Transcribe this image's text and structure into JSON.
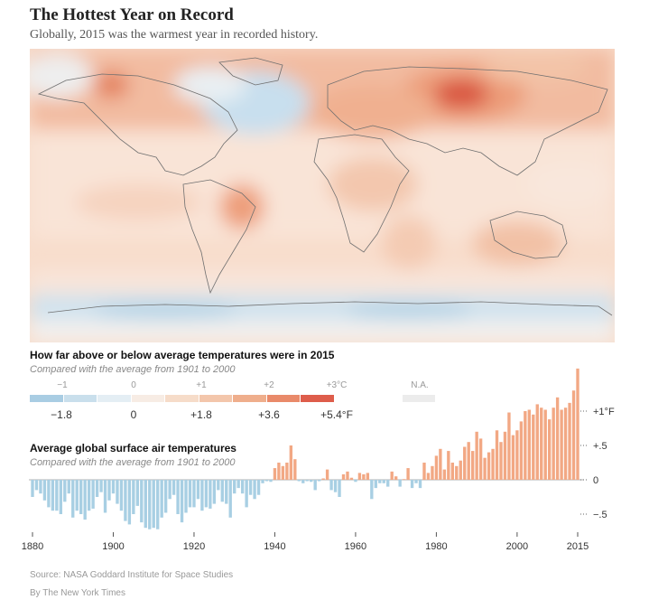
{
  "title": "The Hottest Year on Record",
  "subtitle": "Globally, 2015 was the warmest year in recorded history.",
  "map": {
    "description_free": true,
    "colors": {
      "cold2": "#a9cde3",
      "cold1": "#d6e7f1",
      "neutral": "#f6efe8",
      "warm1": "#f7d7c3",
      "warm2": "#f2b594",
      "warm3": "#eb9870",
      "hot": "#d9533f",
      "land_line": "#7a7a7a"
    }
  },
  "legend": {
    "title": "How far above or below average temperatures were in 2015",
    "subtitle": "Compared with the average from 1901 to 2000",
    "celsius": [
      "−1",
      "0",
      "+1",
      "+2",
      "+3°C"
    ],
    "fahrenheit": [
      "−1.8",
      "0",
      "+1.8",
      "+3.6",
      "+5.4°F"
    ],
    "na_label": "N.A.",
    "swatches": [
      "#a9cde3",
      "#c9dfec",
      "#e4eef4",
      "#f7ece4",
      "#f6dcc9",
      "#f3c6ab",
      "#efae8c",
      "#e98a6a",
      "#de5d4b"
    ],
    "na_color": "#ececec"
  },
  "chart_section": {
    "title": "Average global surface air temperatures",
    "subtitle": "Compared with the average from 1901 to 2000"
  },
  "chart_data": {
    "type": "bar",
    "title": "Average global surface air temperatures",
    "subtitle": "Compared with the average from 1901 to 2000",
    "unit": "°F",
    "x": [
      1880,
      1881,
      1882,
      1883,
      1884,
      1885,
      1886,
      1887,
      1888,
      1889,
      1890,
      1891,
      1892,
      1893,
      1894,
      1895,
      1896,
      1897,
      1898,
      1899,
      1900,
      1901,
      1902,
      1903,
      1904,
      1905,
      1906,
      1907,
      1908,
      1909,
      1910,
      1911,
      1912,
      1913,
      1914,
      1915,
      1916,
      1917,
      1918,
      1919,
      1920,
      1921,
      1922,
      1923,
      1924,
      1925,
      1926,
      1927,
      1928,
      1929,
      1930,
      1931,
      1932,
      1933,
      1934,
      1935,
      1936,
      1937,
      1938,
      1939,
      1940,
      1941,
      1942,
      1943,
      1944,
      1945,
      1946,
      1947,
      1948,
      1949,
      1950,
      1951,
      1952,
      1953,
      1954,
      1955,
      1956,
      1957,
      1958,
      1959,
      1960,
      1961,
      1962,
      1963,
      1964,
      1965,
      1966,
      1967,
      1968,
      1969,
      1970,
      1971,
      1972,
      1973,
      1974,
      1975,
      1976,
      1977,
      1978,
      1979,
      1980,
      1981,
      1982,
      1983,
      1984,
      1985,
      1986,
      1987,
      1988,
      1989,
      1990,
      1991,
      1992,
      1993,
      1994,
      1995,
      1996,
      1997,
      1998,
      1999,
      2000,
      2001,
      2002,
      2003,
      2004,
      2005,
      2006,
      2007,
      2008,
      2009,
      2010,
      2011,
      2012,
      2013,
      2014,
      2015
    ],
    "values": [
      -0.25,
      -0.15,
      -0.2,
      -0.3,
      -0.4,
      -0.45,
      -0.45,
      -0.5,
      -0.32,
      -0.2,
      -0.55,
      -0.45,
      -0.5,
      -0.58,
      -0.45,
      -0.42,
      -0.25,
      -0.18,
      -0.48,
      -0.3,
      -0.2,
      -0.35,
      -0.45,
      -0.6,
      -0.65,
      -0.5,
      -0.38,
      -0.62,
      -0.7,
      -0.72,
      -0.7,
      -0.72,
      -0.55,
      -0.48,
      -0.28,
      -0.22,
      -0.5,
      -0.62,
      -0.48,
      -0.4,
      -0.4,
      -0.28,
      -0.45,
      -0.4,
      -0.42,
      -0.35,
      -0.15,
      -0.32,
      -0.35,
      -0.55,
      -0.2,
      -0.12,
      -0.2,
      -0.4,
      -0.22,
      -0.28,
      -0.22,
      -0.05,
      -0.02,
      -0.03,
      0.17,
      0.25,
      0.2,
      0.25,
      0.5,
      0.3,
      -0.02,
      -0.05,
      -0.02,
      -0.03,
      -0.15,
      -0.02,
      0.02,
      0.15,
      -0.15,
      -0.18,
      -0.25,
      0.08,
      0.12,
      0.03,
      -0.03,
      0.1,
      0.08,
      0.1,
      -0.28,
      -0.12,
      -0.05,
      -0.05,
      -0.1,
      0.12,
      0.05,
      -0.1,
      0.01,
      0.17,
      -0.12,
      -0.05,
      -0.12,
      0.25,
      0.1,
      0.2,
      0.35,
      0.45,
      0.15,
      0.42,
      0.25,
      0.2,
      0.28,
      0.48,
      0.55,
      0.42,
      0.7,
      0.6,
      0.32,
      0.4,
      0.45,
      0.72,
      0.55,
      0.7,
      0.98,
      0.65,
      0.72,
      0.85,
      1.0,
      1.02,
      0.95,
      1.1,
      1.05,
      1.02,
      0.88,
      1.05,
      1.2,
      1.02,
      1.05,
      1.12,
      1.3,
      1.62
    ],
    "xticks": [
      1880,
      1900,
      1920,
      1940,
      1960,
      1980,
      2000,
      2015
    ],
    "xtick_labels": [
      "1880",
      "1900",
      "1920",
      "1940",
      "1960",
      "1980",
      "2000",
      "2015"
    ],
    "yticks": [
      1.0,
      0.5,
      0,
      -0.5
    ],
    "ytick_labels": [
      "+1°F",
      "+.5",
      "0",
      "−.5"
    ],
    "ylim": [
      -0.85,
      1.65
    ],
    "colors": {
      "positive": "#f2a884",
      "negative": "#a8cfe3"
    }
  },
  "source": "Source: NASA Goddard Institute for Space Studies",
  "credit": "By The New York Times"
}
